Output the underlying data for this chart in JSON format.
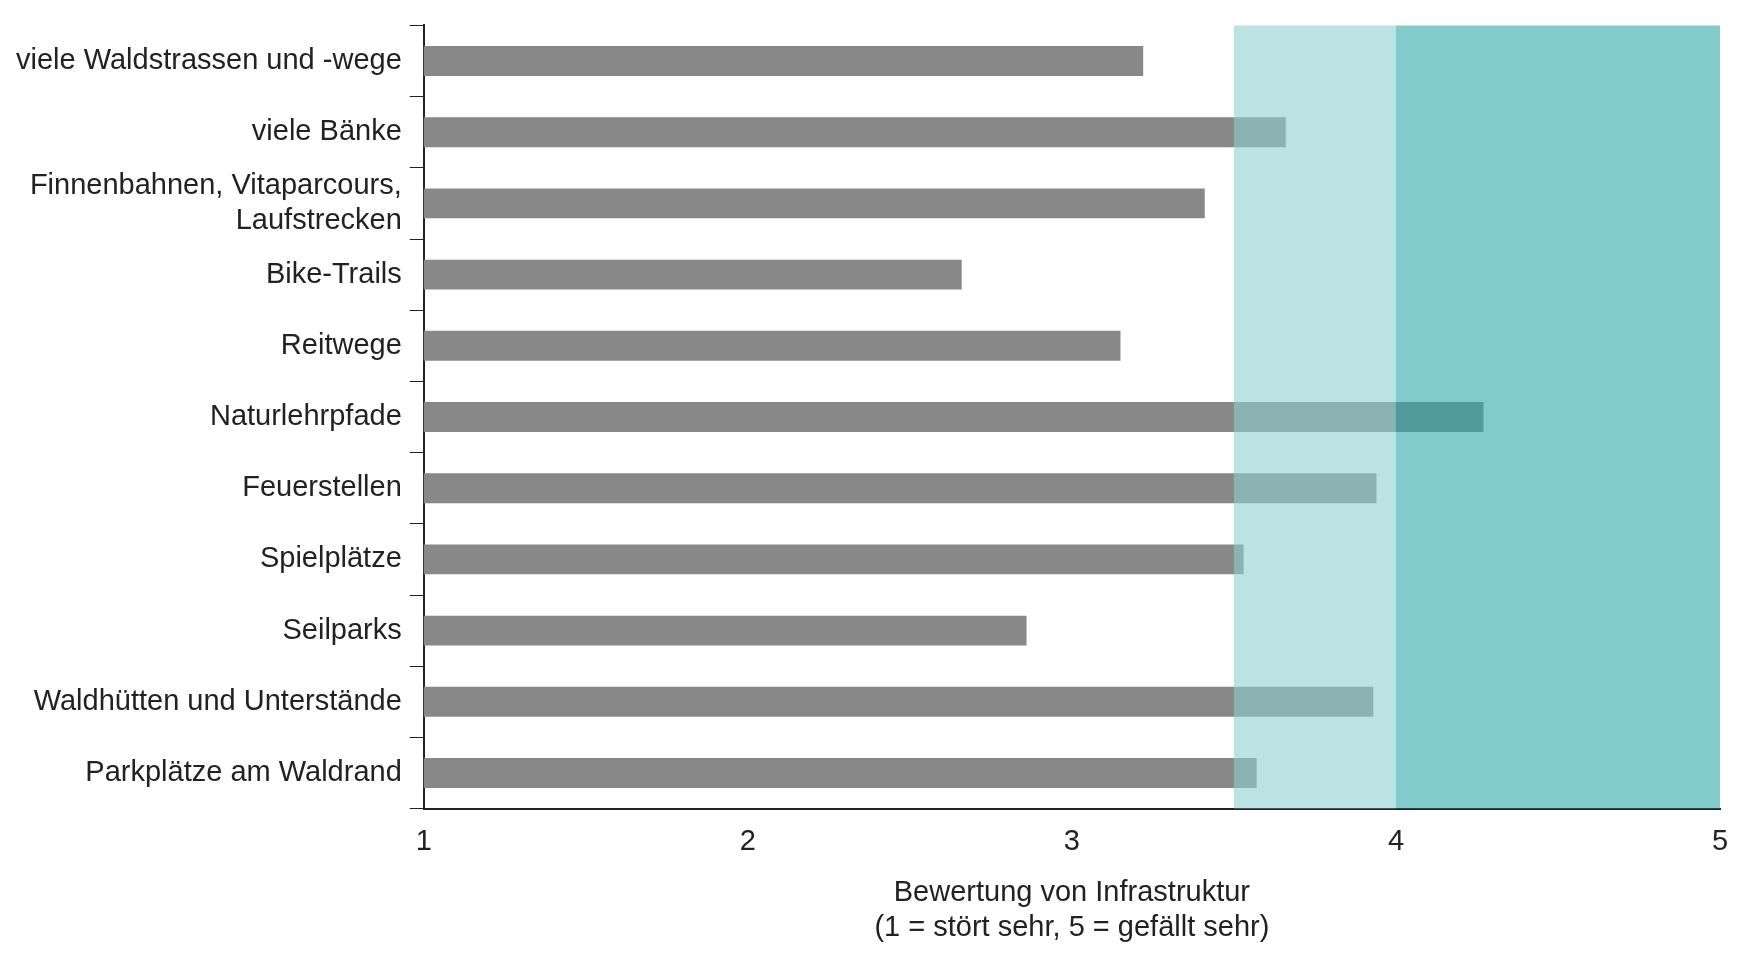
{
  "chart_data": {
    "type": "bar",
    "orientation": "horizontal",
    "xlabel": "Bewertung von Infrastruktur\n(1 = stört sehr, 5 = gefällt sehr)",
    "categories": [
      "viele Waldstrassen und -wege",
      "viele Bänke",
      "Finnenbahnen, Vitaparcours,\nLaufstrecken",
      "Bike-Trails",
      "Reitwege",
      "Naturlehrpfade",
      "Feuerstellen",
      "Spielplätze",
      "Seilparks",
      "Waldhütten und Unterstände",
      "Parkplätze am Waldrand"
    ],
    "values": [
      3.22,
      3.66,
      3.41,
      2.66,
      3.15,
      4.27,
      3.94,
      3.53,
      2.86,
      3.93,
      3.57
    ],
    "color": "#888888",
    "xlim": [
      1,
      5
    ],
    "xticks": [
      1,
      2,
      3,
      4,
      5
    ],
    "grid": false,
    "legend": false,
    "bands": [
      {
        "axis": "x",
        "from": 3.5,
        "to": 4,
        "color": "#8fd0d0"
      },
      {
        "axis": "x",
        "from": 4,
        "to": 5,
        "color": "#2fa8a8"
      }
    ]
  }
}
